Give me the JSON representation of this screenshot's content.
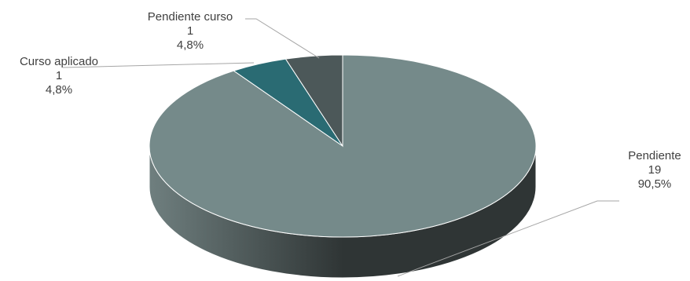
{
  "chart_data": {
    "type": "pie",
    "style": "3d",
    "slices": [
      {
        "label": "Pendiente",
        "value": 19,
        "percent": "90,5%",
        "color": "#758a8a"
      },
      {
        "label": "Curso aplicado",
        "value": 1,
        "percent": "4,8%",
        "color": "#2a6b73"
      },
      {
        "label": "Pendiente curso",
        "value": 1,
        "percent": "4,8%",
        "color": "#4c5859"
      }
    ],
    "side_colors": {
      "light": "#6f7f7f",
      "dark": "#2f3535"
    },
    "leader_line_color": "#a6a6a6",
    "label_color": "#404040",
    "background": "#ffffff"
  }
}
